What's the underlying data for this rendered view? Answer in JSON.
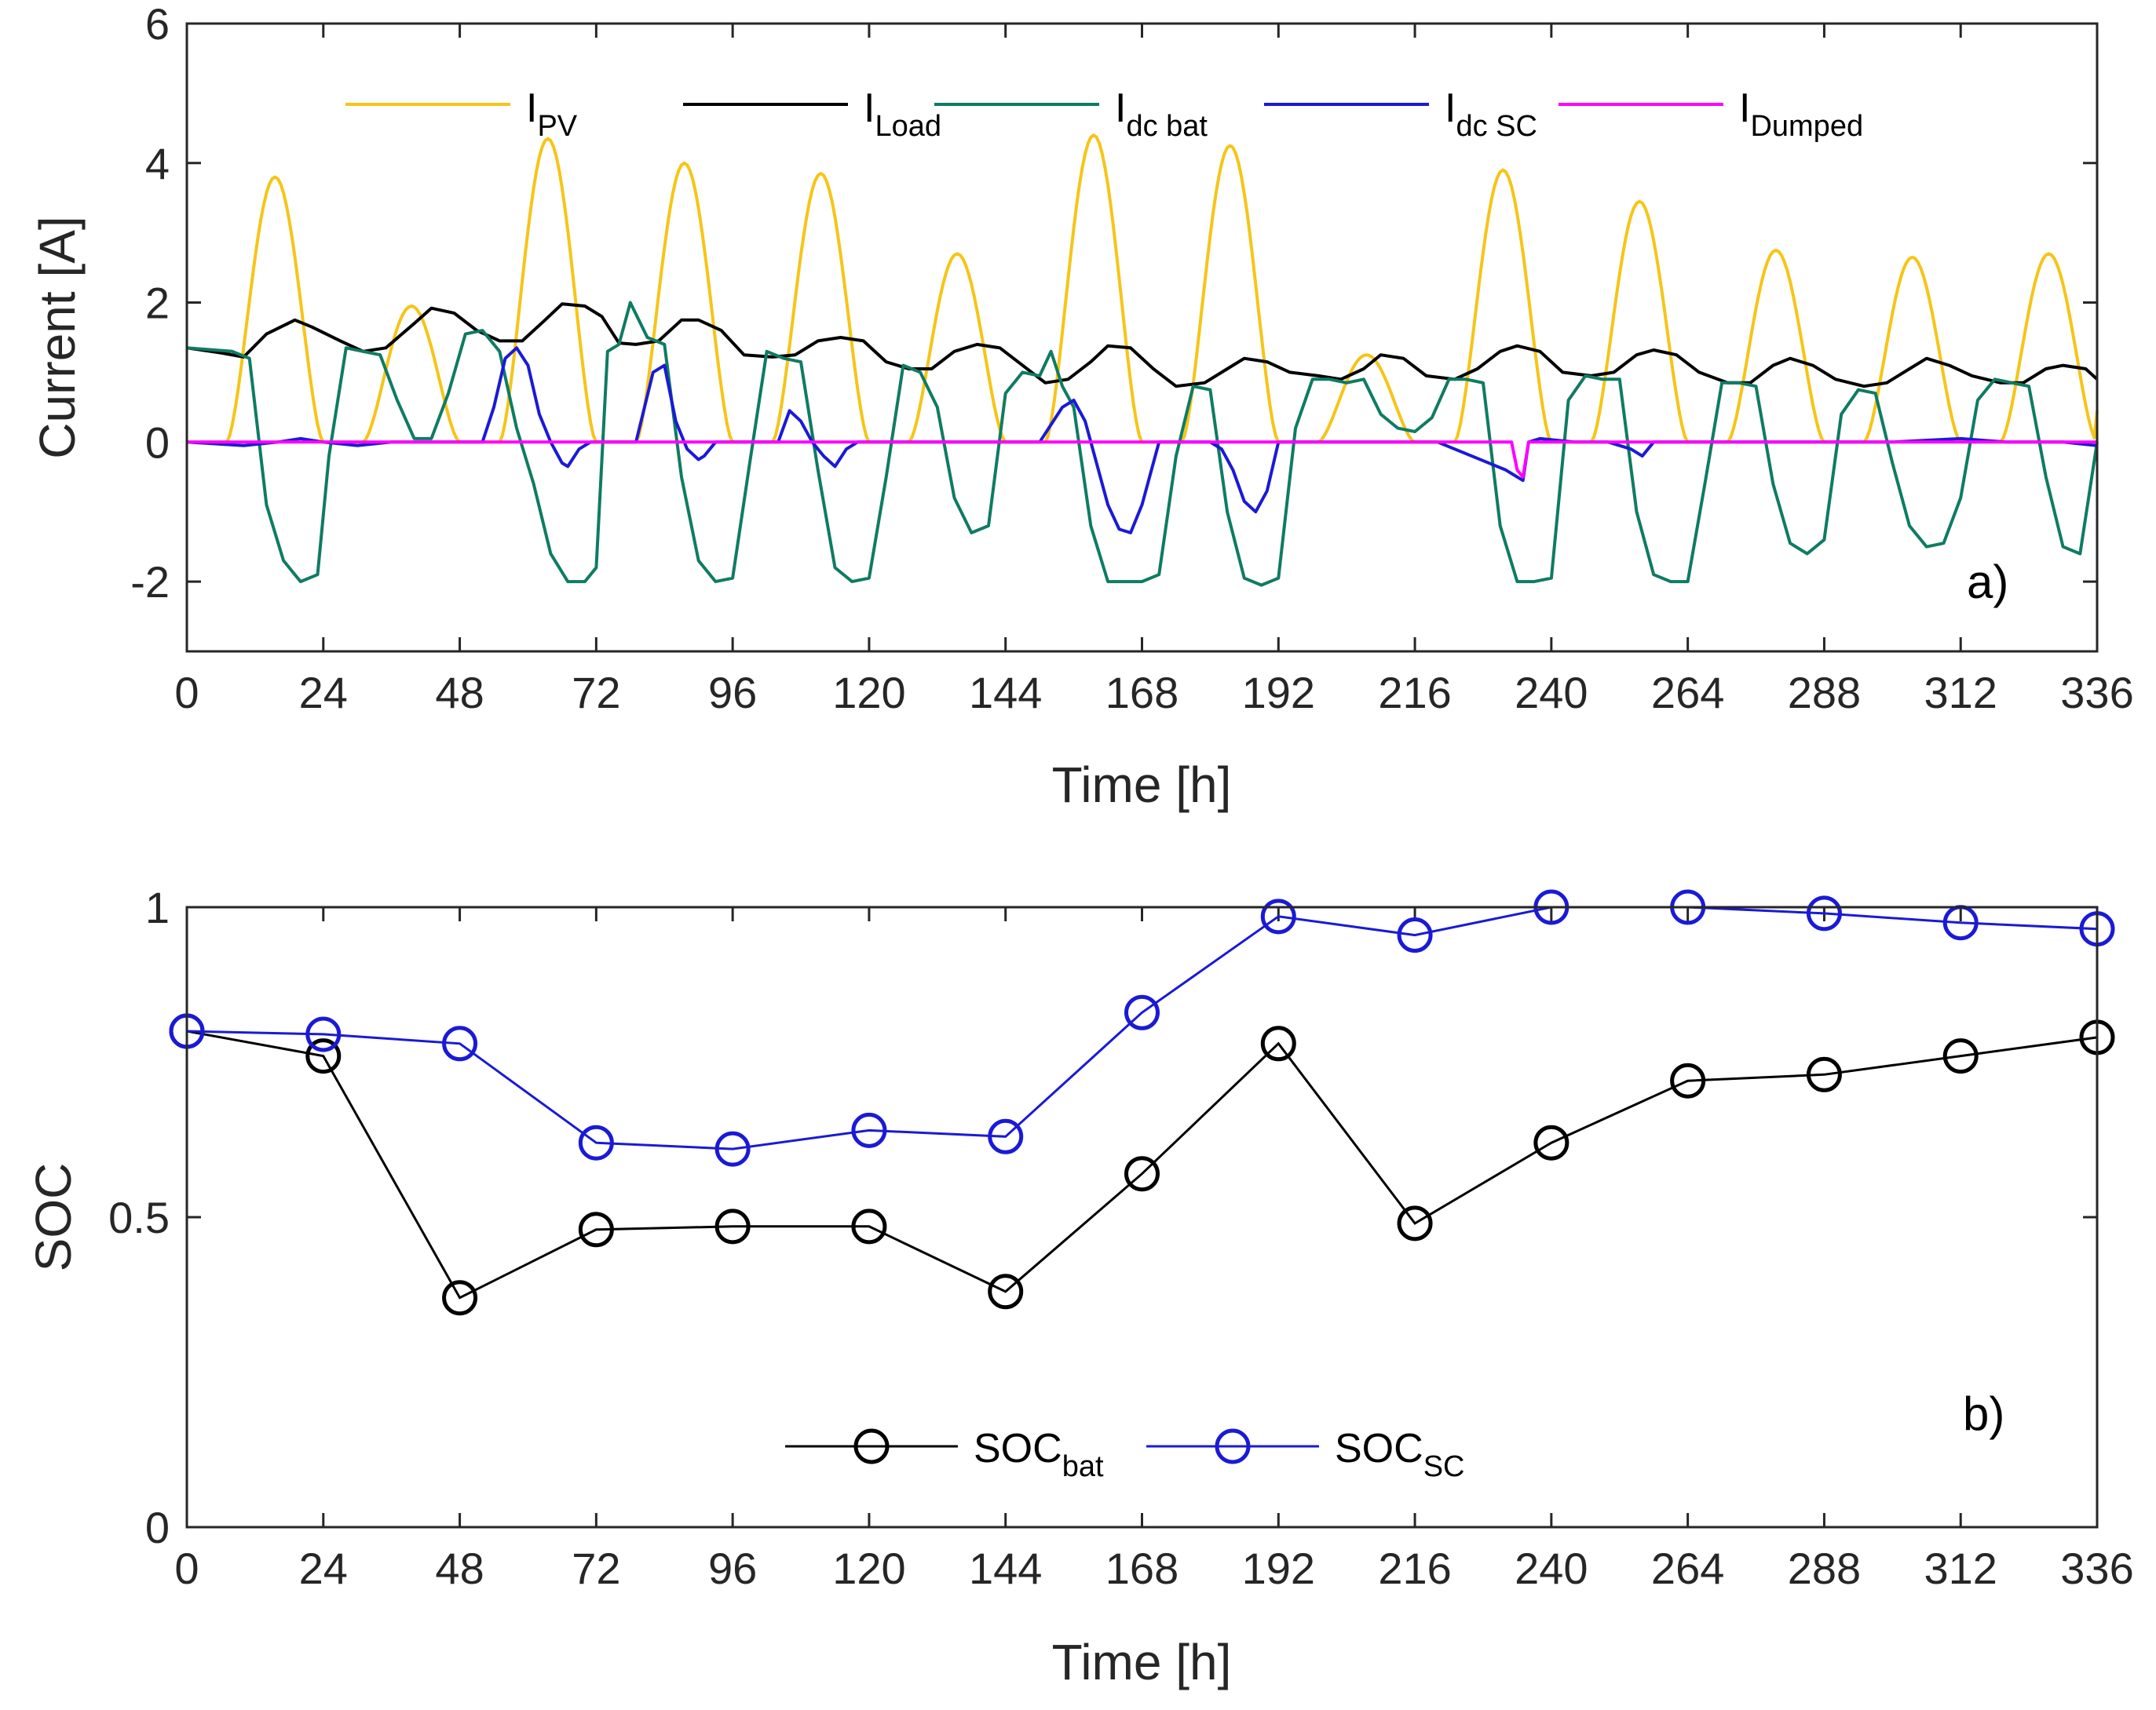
{
  "figure": {
    "panels": [
      {
        "id": "a",
        "label": "a)"
      },
      {
        "id": "b",
        "label": "b)"
      }
    ]
  },
  "colors": {
    "pv": "#f5c518",
    "load": "#000000",
    "bat": "#0f7b63",
    "sc": "#1a1ad6",
    "dumped": "#ff00ff",
    "soc_bat": "#000000",
    "soc_sc": "#1a1ad6"
  },
  "chart_data": [
    {
      "type": "line",
      "panel": "a",
      "xlabel": "Time [h]",
      "ylabel": "Current [A]",
      "xlim": [
        0,
        336
      ],
      "ylim": [
        -3,
        6
      ],
      "xticks": [
        "0",
        "24",
        "48",
        "72",
        "96",
        "120",
        "144",
        "168",
        "192",
        "216",
        "240",
        "264",
        "288",
        "312",
        "336"
      ],
      "yticks": [
        "-2",
        "0",
        "2",
        "4",
        "6"
      ],
      "legend_position": "top",
      "series": [
        {
          "name": "I",
          "sub": "PV",
          "color_key": "pv",
          "day_peaks": [
            3.8,
            1.95,
            4.35,
            4.0,
            3.85,
            2.7,
            4.4,
            4.25,
            1.25,
            3.9,
            3.45,
            2.75,
            2.65,
            2.7
          ],
          "note_sunrise_sunset_h": [
            12,
            29
          ]
        },
        {
          "name": "I",
          "sub": "Load",
          "color_key": "load",
          "x": [
            0,
            6,
            10,
            14,
            19,
            22,
            27,
            31,
            35,
            40,
            43,
            47,
            51,
            55,
            59,
            63,
            66,
            70,
            73,
            76,
            79,
            83,
            87,
            90,
            94,
            98,
            103,
            107,
            111,
            115,
            119,
            123,
            127,
            131,
            135,
            139,
            143,
            147,
            151,
            155,
            159,
            162,
            166,
            170,
            174,
            179,
            183,
            186,
            190,
            194,
            199,
            203,
            207,
            210,
            214,
            218,
            223,
            227,
            231,
            234,
            238,
            242,
            247,
            251,
            255,
            258,
            262,
            266,
            271,
            275,
            279,
            282,
            286,
            290,
            295,
            299,
            303,
            306,
            310,
            314,
            319,
            323,
            327,
            330,
            334,
            336
          ],
          "y": [
            1.35,
            1.28,
            1.22,
            1.55,
            1.75,
            1.65,
            1.45,
            1.3,
            1.35,
            1.7,
            1.92,
            1.85,
            1.6,
            1.45,
            1.45,
            1.75,
            1.98,
            1.95,
            1.8,
            1.42,
            1.4,
            1.45,
            1.75,
            1.75,
            1.6,
            1.25,
            1.22,
            1.25,
            1.45,
            1.5,
            1.45,
            1.15,
            1.05,
            1.05,
            1.3,
            1.4,
            1.35,
            1.1,
            0.85,
            0.9,
            1.15,
            1.38,
            1.35,
            1.05,
            0.8,
            0.85,
            1.05,
            1.2,
            1.15,
            1.0,
            0.95,
            0.9,
            1.05,
            1.25,
            1.2,
            0.95,
            0.9,
            1.05,
            1.3,
            1.38,
            1.3,
            1.0,
            0.95,
            1.0,
            1.25,
            1.32,
            1.25,
            1.0,
            0.85,
            0.85,
            1.1,
            1.2,
            1.1,
            0.9,
            0.8,
            0.85,
            1.05,
            1.2,
            1.1,
            0.95,
            0.85,
            0.85,
            1.05,
            1.1,
            1.05,
            0.9
          ]
        },
        {
          "name": "I",
          "sub": "dc bat",
          "color_key": "bat",
          "x": [
            0,
            8,
            11,
            14,
            17,
            20,
            23,
            25,
            28,
            31,
            34,
            37,
            40,
            43,
            46,
            49,
            52,
            55,
            58,
            61,
            64,
            67,
            70,
            72,
            74,
            76,
            78,
            81,
            84,
            87,
            90,
            93,
            96,
            99,
            102,
            105,
            108,
            111,
            114,
            117,
            120,
            123,
            126,
            129,
            132,
            135,
            138,
            141,
            144,
            147,
            150,
            152,
            154,
            156,
            159,
            162,
            165,
            168,
            171,
            174,
            177,
            180,
            183,
            186,
            189,
            192,
            195,
            198,
            201,
            204,
            207,
            210,
            213,
            216,
            219,
            222,
            225,
            228,
            231,
            234,
            237,
            240,
            243,
            246,
            249,
            252,
            255,
            258,
            261,
            264,
            267,
            270,
            273,
            276,
            279,
            282,
            285,
            288,
            291,
            294,
            297,
            300,
            303,
            306,
            309,
            312,
            315,
            318,
            321,
            324,
            327,
            330,
            333,
            336
          ],
          "y": [
            1.35,
            1.3,
            1.2,
            -0.9,
            -1.7,
            -2.0,
            -1.9,
            -0.2,
            1.35,
            1.3,
            1.25,
            0.6,
            0.05,
            0.05,
            0.7,
            1.55,
            1.6,
            1.3,
            0.2,
            -0.6,
            -1.6,
            -2.0,
            -2.0,
            -1.8,
            1.3,
            1.4,
            2.0,
            1.5,
            1.4,
            -0.5,
            -1.7,
            -2.0,
            -1.95,
            -0.3,
            1.3,
            1.2,
            1.15,
            -0.4,
            -1.8,
            -2.0,
            -1.95,
            -0.5,
            1.1,
            1.0,
            0.5,
            -0.8,
            -1.3,
            -1.2,
            0.7,
            1.0,
            0.95,
            1.3,
            0.8,
            0.5,
            -1.2,
            -2.0,
            -2.0,
            -2.0,
            -1.9,
            -0.2,
            0.8,
            0.75,
            -1.0,
            -1.95,
            -2.05,
            -1.95,
            0.2,
            0.9,
            0.9,
            0.85,
            0.9,
            0.4,
            0.2,
            0.15,
            0.35,
            0.9,
            0.9,
            0.85,
            -1.2,
            -2.0,
            -2.0,
            -1.95,
            0.6,
            0.95,
            0.9,
            0.9,
            -1.0,
            -1.9,
            -2.0,
            -2.0,
            -0.6,
            0.85,
            0.85,
            0.8,
            -0.6,
            -1.45,
            -1.6,
            -1.4,
            0.4,
            0.75,
            0.7,
            -0.3,
            -1.2,
            -1.5,
            -1.45,
            -0.8,
            0.6,
            0.9,
            0.85,
            0.8,
            -0.5,
            -1.5,
            -1.6,
            0.0
          ]
        },
        {
          "name": "I",
          "sub": "dc SC",
          "color_key": "sc",
          "x": [
            0,
            10,
            16,
            20,
            24,
            30,
            36,
            44,
            52,
            54,
            56,
            58,
            60,
            62,
            64,
            66,
            67,
            69,
            71,
            76,
            79,
            82,
            84,
            86,
            88,
            90,
            91,
            93,
            96,
            104,
            106,
            108,
            110,
            112,
            114,
            116,
            118,
            130,
            140,
            150,
            154,
            156,
            158,
            160,
            162,
            164,
            166,
            168,
            171,
            176,
            180,
            182,
            184,
            186,
            188,
            190,
            192,
            200,
            220,
            232,
            234,
            235,
            236,
            238,
            244,
            250,
            254,
            256,
            258,
            264,
            280,
            300,
            312,
            320,
            330,
            336
          ],
          "y": [
            0,
            -0.05,
            0.0,
            0.05,
            0.0,
            -0.05,
            0.0,
            0.0,
            0.0,
            0.5,
            1.2,
            1.35,
            1.1,
            0.4,
            0.0,
            -0.3,
            -0.35,
            -0.1,
            0.0,
            0.0,
            0.0,
            1.0,
            1.1,
            0.3,
            -0.1,
            -0.25,
            -0.2,
            0.0,
            0.0,
            0.0,
            0.45,
            0.3,
            0.0,
            -0.2,
            -0.35,
            -0.1,
            0.0,
            0.0,
            0.0,
            0.0,
            0.5,
            0.6,
            0.3,
            -0.3,
            -0.9,
            -1.25,
            -1.3,
            -0.9,
            0.0,
            0.0,
            0.0,
            -0.1,
            -0.4,
            -0.85,
            -1.0,
            -0.7,
            0.0,
            0.0,
            0.0,
            -0.4,
            -0.5,
            -0.55,
            0.0,
            0.05,
            0.0,
            0.0,
            -0.1,
            -0.2,
            0.0,
            0.0,
            0.0,
            0.0,
            0.05,
            0.0,
            0.0,
            -0.05
          ]
        },
        {
          "name": "I",
          "sub": "Dumped",
          "color_key": "dumped",
          "x": [
            0,
            233,
            234,
            235,
            236,
            336
          ],
          "y": [
            0,
            0,
            -0.4,
            -0.5,
            0,
            0
          ]
        }
      ]
    },
    {
      "type": "line",
      "panel": "b",
      "xlabel": "Time [h]",
      "ylabel": "SOC",
      "xlim": [
        0,
        336
      ],
      "ylim": [
        0,
        1
      ],
      "xticks": [
        "0",
        "24",
        "48",
        "72",
        "96",
        "120",
        "144",
        "168",
        "192",
        "216",
        "240",
        "264",
        "288",
        "312",
        "336"
      ],
      "yticks": [
        "0",
        "0.5",
        "1"
      ],
      "legend_position": "bottom-center",
      "x": [
        0,
        24,
        48,
        72,
        96,
        120,
        144,
        168,
        192,
        216,
        240,
        264,
        288,
        312,
        336
      ],
      "series": [
        {
          "name": "SOC",
          "sub": "bat",
          "color_key": "soc_bat",
          "values": [
            0.8,
            0.76,
            0.37,
            0.48,
            0.485,
            0.485,
            0.38,
            0.57,
            0.78,
            0.49,
            0.62,
            0.72,
            0.73,
            0.76,
            0.79
          ]
        },
        {
          "name": "SOC",
          "sub": "SC",
          "color_key": "soc_sc",
          "values": [
            0.8,
            0.795,
            0.78,
            0.62,
            0.61,
            0.64,
            0.63,
            0.83,
            0.985,
            0.955,
            1.0,
            1.0,
            0.99,
            0.975,
            0.965
          ]
        }
      ]
    }
  ]
}
